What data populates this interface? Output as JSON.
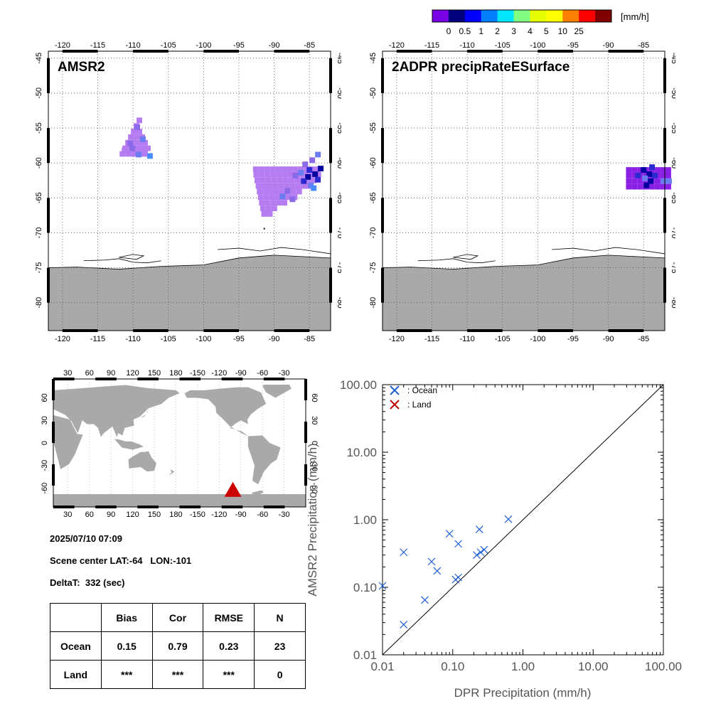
{
  "colorbar": {
    "unit": "[mm/h]",
    "colors": [
      "#7a00e6",
      "#00007f",
      "#0000ff",
      "#0080ff",
      "#00e6ff",
      "#80ff80",
      "#e6ff00",
      "#ffff00",
      "#ff8000",
      "#ff0000",
      "#800000"
    ],
    "ticks": [
      "0",
      "0.5",
      "1",
      "2",
      "3",
      "4",
      "5",
      "10",
      "25"
    ]
  },
  "maps": [
    {
      "title": "AMSR2",
      "lon_ticks": [
        "-120",
        "-115",
        "-110",
        "-105",
        "-100",
        "-95",
        "-90",
        "-85"
      ],
      "lat_ticks": [
        "-45",
        "-50",
        "-55",
        "-60",
        "-65",
        "-70",
        "-75",
        "-80"
      ],
      "precip_colors": [
        "#b57bf0",
        "#8a6ae8",
        "#6a7cf0",
        "#2a2ad0",
        "#0000a0",
        "#4a8cff"
      ]
    },
    {
      "title": "2ADPR precipRateESurface",
      "lon_ticks": [
        "-120",
        "-115",
        "-110",
        "-105",
        "-100",
        "-95",
        "-90",
        "-85"
      ],
      "lat_ticks": [
        "-45",
        "-50",
        "-55",
        "-60",
        "-65",
        "-70",
        "-75",
        "-80"
      ],
      "precip_colors": [
        "#8a20e6",
        "#2a2ad0",
        "#0000a0",
        "#6a7cf0"
      ]
    }
  ],
  "globe": {
    "lon_ticks": [
      "30",
      "60",
      "90",
      "120",
      "150",
      "180",
      "-150",
      "-120",
      "-90",
      "-60",
      "-30"
    ],
    "lat_ticks": [
      "60",
      "30",
      "0",
      "-30",
      "-60"
    ],
    "land_color": "#a9a9a9",
    "marker_color": "#cc0000"
  },
  "info": {
    "datetime": "2025/07/10 07:09",
    "scene_center": "Scene center LAT:-64   LON:-101",
    "delta_t": "DeltaT:  332 (sec)"
  },
  "stats_table": {
    "headers": [
      "",
      "Bias",
      "Cor",
      "RMSE",
      "N"
    ],
    "rows": [
      {
        "label": "Ocean",
        "bias": "0.15",
        "cor": "0.79",
        "rmse": "0.23",
        "n": "23"
      },
      {
        "label": "Land",
        "bias": "***",
        "cor": "***",
        "rmse": "***",
        "n": "0"
      }
    ]
  },
  "chart_data": {
    "type": "scatter",
    "xlabel": "DPR Precipitation (mm/h)",
    "ylabel": "AMSR2 Precipitation (mm/h)",
    "x_scale": "log",
    "y_scale": "log",
    "xlim": [
      0.01,
      100
    ],
    "ylim": [
      0.01,
      100
    ],
    "x_tick_labels": [
      "0.01",
      "0.10",
      "1.00",
      "10.00",
      "100.00"
    ],
    "y_tick_labels": [
      "0.01",
      "0.10",
      "1.00",
      "10.00",
      "100.00"
    ],
    "reference_line": "1:1",
    "legend": [
      {
        "label": ": Ocean",
        "color": "#1f5fd6"
      },
      {
        "label": ": Land",
        "color": "#c00000"
      }
    ],
    "legend_position": "top-left",
    "series": [
      {
        "name": ": Ocean",
        "color": "#1f5fd6",
        "points": [
          [
            0.01,
            0.105
          ],
          [
            0.02,
            0.33
          ],
          [
            0.02,
            0.028
          ],
          [
            0.04,
            0.065
          ],
          [
            0.05,
            0.24
          ],
          [
            0.06,
            0.175
          ],
          [
            0.09,
            0.62
          ],
          [
            0.11,
            0.13
          ],
          [
            0.12,
            0.44
          ],
          [
            0.12,
            0.14
          ],
          [
            0.22,
            0.3
          ],
          [
            0.24,
            0.72
          ],
          [
            0.25,
            0.33
          ],
          [
            0.28,
            0.36
          ],
          [
            0.62,
            1.02
          ]
        ]
      },
      {
        "name": ": Land",
        "color": "#c00000",
        "points": []
      }
    ]
  }
}
